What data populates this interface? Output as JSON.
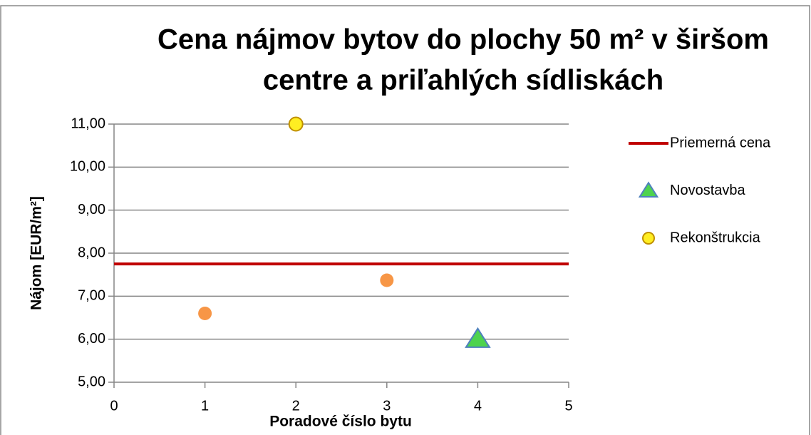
{
  "chart_data": {
    "type": "scatter",
    "title": [
      "Cena nájmov bytov do plochy 50 m² v širšom",
      "centre a priľahlých sídliskách"
    ],
    "xlabel": "Poradové číslo bytu",
    "ylabel": "Nájom [EUR/m²]",
    "xlim": [
      0,
      5
    ],
    "xticks": [
      0,
      1,
      2,
      3,
      4,
      5
    ],
    "ylim": [
      5,
      11
    ],
    "yticks": [
      {
        "value": 5,
        "label": "5,00"
      },
      {
        "value": 6,
        "label": "6,00"
      },
      {
        "value": 7,
        "label": "7,00"
      },
      {
        "value": 8,
        "label": "8,00"
      },
      {
        "value": 9,
        "label": "9,00"
      },
      {
        "value": 10,
        "label": "10,00"
      },
      {
        "value": 11,
        "label": "11,00"
      }
    ],
    "grid": true,
    "legend": "right",
    "series": [
      {
        "name": "Priemerná cena",
        "color": "#c00000",
        "marker": "line",
        "x": [
          0,
          5
        ],
        "values": [
          7.75,
          7.75
        ]
      },
      {
        "name": "Novostavba",
        "color": "#4ed34e",
        "marker": "triangle",
        "x": [
          4
        ],
        "values": [
          6.0
        ]
      },
      {
        "name": "Rekonštrukcia",
        "color": "#ffee22",
        "marker": "circle",
        "x": [
          2
        ],
        "values": [
          11.0
        ]
      },
      {
        "color": "#f79646",
        "marker": "circle",
        "x": [
          1,
          3
        ],
        "values": [
          6.6,
          7.37
        ]
      }
    ]
  }
}
